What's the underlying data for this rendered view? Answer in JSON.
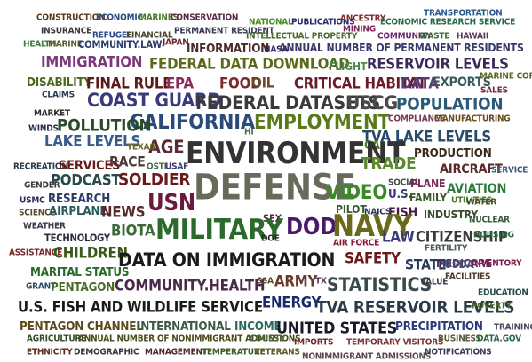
{
  "words": [
    {
      "text": "CONSTRUCTION",
      "color": "#5a3a1a"
    },
    {
      "text": "ECONOMIC",
      "color": "#2a4a7a"
    },
    {
      "text": "MARINES",
      "color": "#4a7a2a"
    },
    {
      "text": "CONSERVATION",
      "color": "#5a2a4a"
    },
    {
      "text": "NATIONAL",
      "color": "#4a8a2a"
    },
    {
      "text": "PUBLICATIONS",
      "color": "#2a2a6a"
    },
    {
      "text": "ANCESTRY",
      "color": "#8a2a2a"
    },
    {
      "text": "TRANSPORTATION",
      "color": "#2a5a8a"
    },
    {
      "text": "INSURANCE",
      "color": "#3a3a3a"
    },
    {
      "text": "REFUGEE",
      "color": "#2a4a8a"
    },
    {
      "text": "FINANCIAL",
      "color": "#4a4a2a"
    },
    {
      "text": "PERMANENT RESIDENT",
      "color": "#3a3a5a"
    },
    {
      "text": "MINING",
      "color": "#7a2a5a"
    },
    {
      "text": "ECONOMIC RESEARCH SERVICE",
      "color": "#2a6a4a"
    },
    {
      "text": "HEALTH",
      "color": "#3a7a3a"
    },
    {
      "text": "MARINE",
      "color": "#5a5a2a"
    },
    {
      "text": "COMMUNITY.LAW",
      "color": "#2a3a6a"
    },
    {
      "text": "JAPAN",
      "color": "#6a2a2a"
    },
    {
      "text": "INTELLECTUAL PROPERTY",
      "color": "#4a6a2a"
    },
    {
      "text": "COMMUNITY",
      "color": "#6a2a6a"
    },
    {
      "text": "WASTE",
      "color": "#3a6a3a"
    },
    {
      "text": "HAWAII",
      "color": "#5a3a5a"
    },
    {
      "text": "INFORMATION",
      "color": "#4a2a2a"
    },
    {
      "text": "NASA",
      "color": "#2a2a5a"
    },
    {
      "text": "ANNUAL NUMBER OF PERMANENT RESIDENTS",
      "color": "#3a3a6a"
    },
    {
      "text": "IMMIGRATION",
      "color": "#7a3a7a"
    },
    {
      "text": "FEDERAL DATA DOWNLOAD",
      "color": "#5a6a1a"
    },
    {
      "text": "FLIGHT",
      "color": "#4a8a4a"
    },
    {
      "text": "RESERVOIR LEVELS",
      "color": "#3a2a5a"
    },
    {
      "text": "DISABILITY",
      "color": "#4a6a1a"
    },
    {
      "text": "FINAL RULE",
      "color": "#5a1a1a"
    },
    {
      "text": "EPA",
      "color": "#8a2a5a"
    },
    {
      "text": "FOOD",
      "color": "#7a2a2a"
    },
    {
      "text": "OIL",
      "color": "#6a4a2a"
    },
    {
      "text": "CRITICAL HABITAT",
      "color": "#6a1a2a"
    },
    {
      "text": "DATA",
      "color": "#5a3a7a"
    },
    {
      "text": "EXPORTS",
      "color": "#3a5a5a"
    },
    {
      "text": "MARINE CORPS",
      "color": "#5a6a2a"
    },
    {
      "text": "CLAIMS",
      "color": "#2a3a4a"
    },
    {
      "text": "COAST GUARD",
      "color": "#3a3a7a"
    },
    {
      "text": "FEDERAL DATASETS",
      "color": "#3a3a3a"
    },
    {
      "text": "USCG",
      "color": "#4a4a4a"
    },
    {
      "text": "POPULATION",
      "color": "#2a5a7a"
    },
    {
      "text": "SALES",
      "color": "#7a2a3a"
    },
    {
      "text": "MARKET",
      "color": "#2a2a2a"
    },
    {
      "text": "CALIFORNIA",
      "color": "#2a4a7a"
    },
    {
      "text": "EMPLOYMENT",
      "color": "#5a7a1a"
    },
    {
      "text": "COMPLIANCE",
      "color": "#7a3a5a"
    },
    {
      "text": "MANUFACTURING",
      "color": "#6a4a1a"
    },
    {
      "text": "WINDS",
      "color": "#2a2a4a"
    },
    {
      "text": "POLLUTION",
      "color": "#2a4a2a"
    },
    {
      "text": "HI",
      "color": "#4a6a4a"
    },
    {
      "text": "LAKE LEVELS",
      "color": "#3a5a8a"
    },
    {
      "text": "TVA LAKE LEVELS",
      "color": "#2a4a6a"
    },
    {
      "text": "AGE",
      "color": "#5a2a3a"
    },
    {
      "text": "CA",
      "color": "#4a7a2a"
    },
    {
      "text": "TEXAS",
      "color": "#6a6a2a"
    },
    {
      "text": "ENVIRONMENT",
      "color": "#333333"
    },
    {
      "text": "PRODUCTION",
      "color": "#3a2a1a"
    },
    {
      "text": "RACE",
      "color": "#4a3a3a"
    },
    {
      "text": "TRADE",
      "color": "#5a8a2a"
    },
    {
      "text": "RECREATION",
      "color": "#2a3a4a"
    },
    {
      "text": "SERVICES",
      "color": "#6a1a1a"
    },
    {
      "text": "OSTI",
      "color": "#4a6a4a"
    },
    {
      "text": "USAF",
      "color": "#3a3a6a"
    },
    {
      "text": "AIRCRAFT",
      "color": "#5a2a2a"
    },
    {
      "text": "SERVICE",
      "color": "#3a5a7a"
    },
    {
      "text": "GENDER",
      "color": "#3a3a3a"
    },
    {
      "text": "PODCAST",
      "color": "#2a4a4a"
    },
    {
      "text": "SOLDIER",
      "color": "#6a1a1a"
    },
    {
      "text": "DEFENSE",
      "color": "#6a6a5a"
    },
    {
      "text": "VIDEO",
      "color": "#3a8a2a"
    },
    {
      "text": "SOCIAL",
      "color": "#4a4a4a"
    },
    {
      "text": "PLANE",
      "color": "#7a2a5a"
    },
    {
      "text": "U.S.",
      "color": "#3a3a7a"
    },
    {
      "text": "AVIATION",
      "color": "#2a7a3a"
    },
    {
      "text": "USMC",
      "color": "#2a2a5a"
    },
    {
      "text": "RESEARCH",
      "color": "#2a3a6a"
    },
    {
      "text": "FAMILY",
      "color": "#3a5a2a"
    },
    {
      "text": "UTILITIES",
      "color": "#4a7a2a"
    },
    {
      "text": "SCIENCE",
      "color": "#5a4a2a"
    },
    {
      "text": "AIRPLANE",
      "color": "#2a5a5a"
    },
    {
      "text": "NEWS",
      "color": "#5a2a2a"
    },
    {
      "text": "USN",
      "color": "#6a1a3a"
    },
    {
      "text": "PILOT",
      "color": "#3a5a3a"
    },
    {
      "text": "WATER",
      "color": "#4a4a2a"
    },
    {
      "text": "FISH",
      "color": "#4a1a4a"
    },
    {
      "text": "NAICS",
      "color": "#2a3a5a"
    },
    {
      "text": "INDUSTRY",
      "color": "#3a4a2a"
    },
    {
      "text": "SEX",
      "color": "#5a2a4a"
    },
    {
      "text": "NUCLEAR",
      "color": "#3a5a3a"
    },
    {
      "text": "WEATHER",
      "color": "#3a3a4a"
    },
    {
      "text": "BIOTA",
      "color": "#3a6a3a"
    },
    {
      "text": "MILITARY",
      "color": "#2a6a2a"
    },
    {
      "text": "DOD",
      "color": "#4a1a6a"
    },
    {
      "text": "NAVY",
      "color": "#6a6a1a"
    },
    {
      "text": "LAW",
      "color": "#3a3a7a"
    },
    {
      "text": "CITIZENSHIP",
      "color": "#3a3a3a"
    },
    {
      "text": "HOUSING",
      "color": "#2a6a3a"
    },
    {
      "text": "TECHNOLOGY",
      "color": "#2a2a3a"
    },
    {
      "text": "DOE",
      "color": "#2a2a2a"
    },
    {
      "text": "AIR FORCE",
      "color": "#8a1a3a"
    },
    {
      "text": "FERTILITY",
      "color": "#4a5a5a"
    },
    {
      "text": "MEDICARE",
      "color": "#6a2a5a"
    },
    {
      "text": "ASSISTANCE",
      "color": "#7a2a2a"
    },
    {
      "text": "CHILDREN",
      "color": "#3a5a1a"
    },
    {
      "text": "DATA ON IMMIGRATION",
      "color": "#1a1a1a"
    },
    {
      "text": "SAFETY",
      "color": "#6a1a1a"
    },
    {
      "text": "STATE",
      "color": "#2a3a5a"
    },
    {
      "text": "USDA",
      "color": "#3a5a7a"
    },
    {
      "text": "INVENTORY",
      "color": "#7a1a4a"
    },
    {
      "text": "MARITAL STATUS",
      "color": "#2a6a2a"
    },
    {
      "text": "GRANT",
      "color": "#2a4a6a"
    },
    {
      "text": "PENTAGON",
      "color": "#4a6a2a"
    },
    {
      "text": "COMMUNITY.HEALTH",
      "color": "#4a2a4a"
    },
    {
      "text": "SSA",
      "color": "#5a4a2a"
    },
    {
      "text": "ARMY",
      "color": "#6a3a2a"
    },
    {
      "text": "TX",
      "color": "#5a3a5a"
    },
    {
      "text": "STATISTICS",
      "color": "#3a4a4a"
    },
    {
      "text": "VALUE",
      "color": "#3a3a4a"
    },
    {
      "text": "FACILITIES",
      "color": "#4a3a2a"
    },
    {
      "text": "EDUCATION",
      "color": "#2a4a4a"
    },
    {
      "text": "U.S. FISH AND WILDLIFE SERVICE",
      "color": "#1a1a1a"
    },
    {
      "text": "ENERGY",
      "color": "#1a2a6a"
    },
    {
      "text": "TVA RESERVOIR LEVELS",
      "color": "#2a3a4a"
    },
    {
      "text": "POVERTY",
      "color": "#4a6a2a"
    },
    {
      "text": "PENTAGON CHANNEL",
      "color": "#5a4a1a"
    },
    {
      "text": "INTERNATIONAL",
      "color": "#3a5a4a"
    },
    {
      "text": "INCOME",
      "color": "#2a6a5a"
    },
    {
      "text": "UNITED STATES",
      "color": "#1a1a2a"
    },
    {
      "text": "PRECIPITATION",
      "color": "#2a3a7a"
    },
    {
      "text": "TRAINING",
      "color": "#4a4a5a"
    },
    {
      "text": "AGRICULTURE",
      "color": "#3a4a2a"
    },
    {
      "text": "ANNUAL NUMBER OF NONIMMIGRANT ADMISSIONS",
      "color": "#4a4a1a"
    },
    {
      "text": "COUNTY",
      "color": "#4a6a3a"
    },
    {
      "text": "IMPORTS",
      "color": "#6a2a2a"
    },
    {
      "text": "TEMPORARY VISITORS",
      "color": "#7a3a3a"
    },
    {
      "text": "BUSINESS",
      "color": "#5a5a3a"
    },
    {
      "text": "DATA.GOV",
      "color": "#2a6a4a"
    },
    {
      "text": "ETHNICITY",
      "color": "#5a2a1a"
    },
    {
      "text": "DEMOGRAPHIC",
      "color": "#3a3a3a"
    },
    {
      "text": "MANAGEMENT",
      "color": "#4a2a2a"
    },
    {
      "text": "TEMPERATURE",
      "color": "#3a5a2a"
    },
    {
      "text": "VETERANS",
      "color": "#5a5a2a"
    },
    {
      "text": "NONIMMIGRANT ADMISSIONS",
      "color": "#5a4a4a"
    },
    {
      "text": "NOTIFICATIONS",
      "color": "#3a3a5a"
    }
  ]
}
